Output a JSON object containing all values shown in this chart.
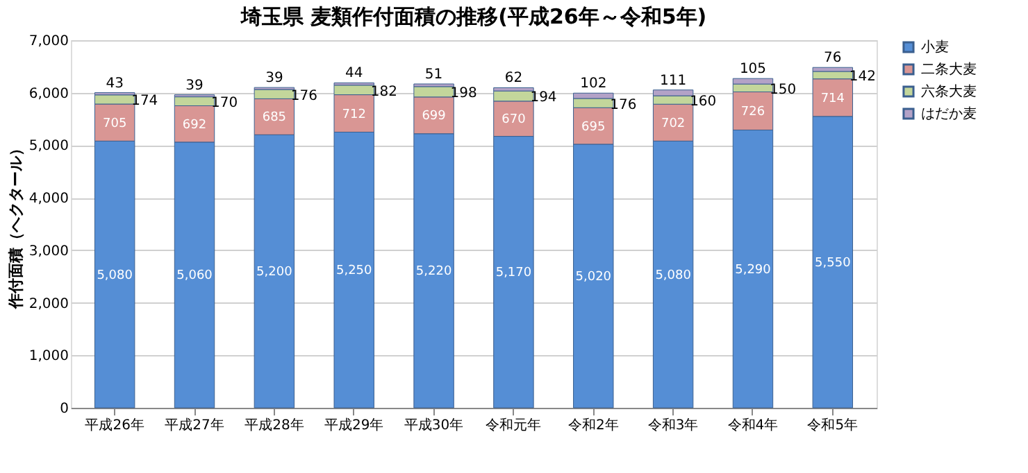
{
  "chart_data": {
    "type": "bar",
    "title": "埼玉県 麦類作付面積の推移(平成26年～令和5年)",
    "ylabel": "作付面積（ヘクタール）",
    "categories": [
      "平成26年",
      "平成27年",
      "平成28年",
      "平成29年",
      "平成30年",
      "令和元年",
      "令和2年",
      "令和3年",
      "令和4年",
      "令和5年"
    ],
    "stacked": true,
    "data_labels": true,
    "legend": "right",
    "grid": "y",
    "ylim": [
      0,
      7000
    ],
    "yticks": [
      0,
      {
        "value": 1000,
        "label": "1,000"
      },
      {
        "value": 2000,
        "label": "2,000"
      },
      {
        "value": 3000,
        "label": "3,000"
      },
      {
        "value": 4000,
        "label": "4,000"
      },
      {
        "value": 5000,
        "label": "5,000"
      },
      {
        "value": 6000,
        "label": "6,000"
      },
      {
        "value": 7000,
        "label": "7,000"
      }
    ],
    "series": [
      {
        "name": "小麦",
        "color": "#558ed5",
        "values": [
          5080,
          5060,
          5200,
          5250,
          5220,
          5170,
          5020,
          5080,
          5290,
          5550
        ],
        "value_labels": [
          "5,080",
          "5,060",
          "5,200",
          "5,250",
          "5,220",
          "5,170",
          "5,020",
          "5,080",
          "5,290",
          "5,550"
        ]
      },
      {
        "name": "二条大麦",
        "color": "#d99694",
        "values": [
          705,
          692,
          685,
          712,
          699,
          670,
          695,
          702,
          726,
          714
        ]
      },
      {
        "name": "六条大麦",
        "color": "#c3d69b",
        "values": [
          174,
          170,
          176,
          182,
          198,
          194,
          176,
          160,
          150,
          142
        ]
      },
      {
        "name": "はだか麦",
        "color": "#b3a2c7",
        "values": [
          43,
          39,
          39,
          44,
          51,
          62,
          102,
          111,
          105,
          76
        ]
      }
    ]
  }
}
